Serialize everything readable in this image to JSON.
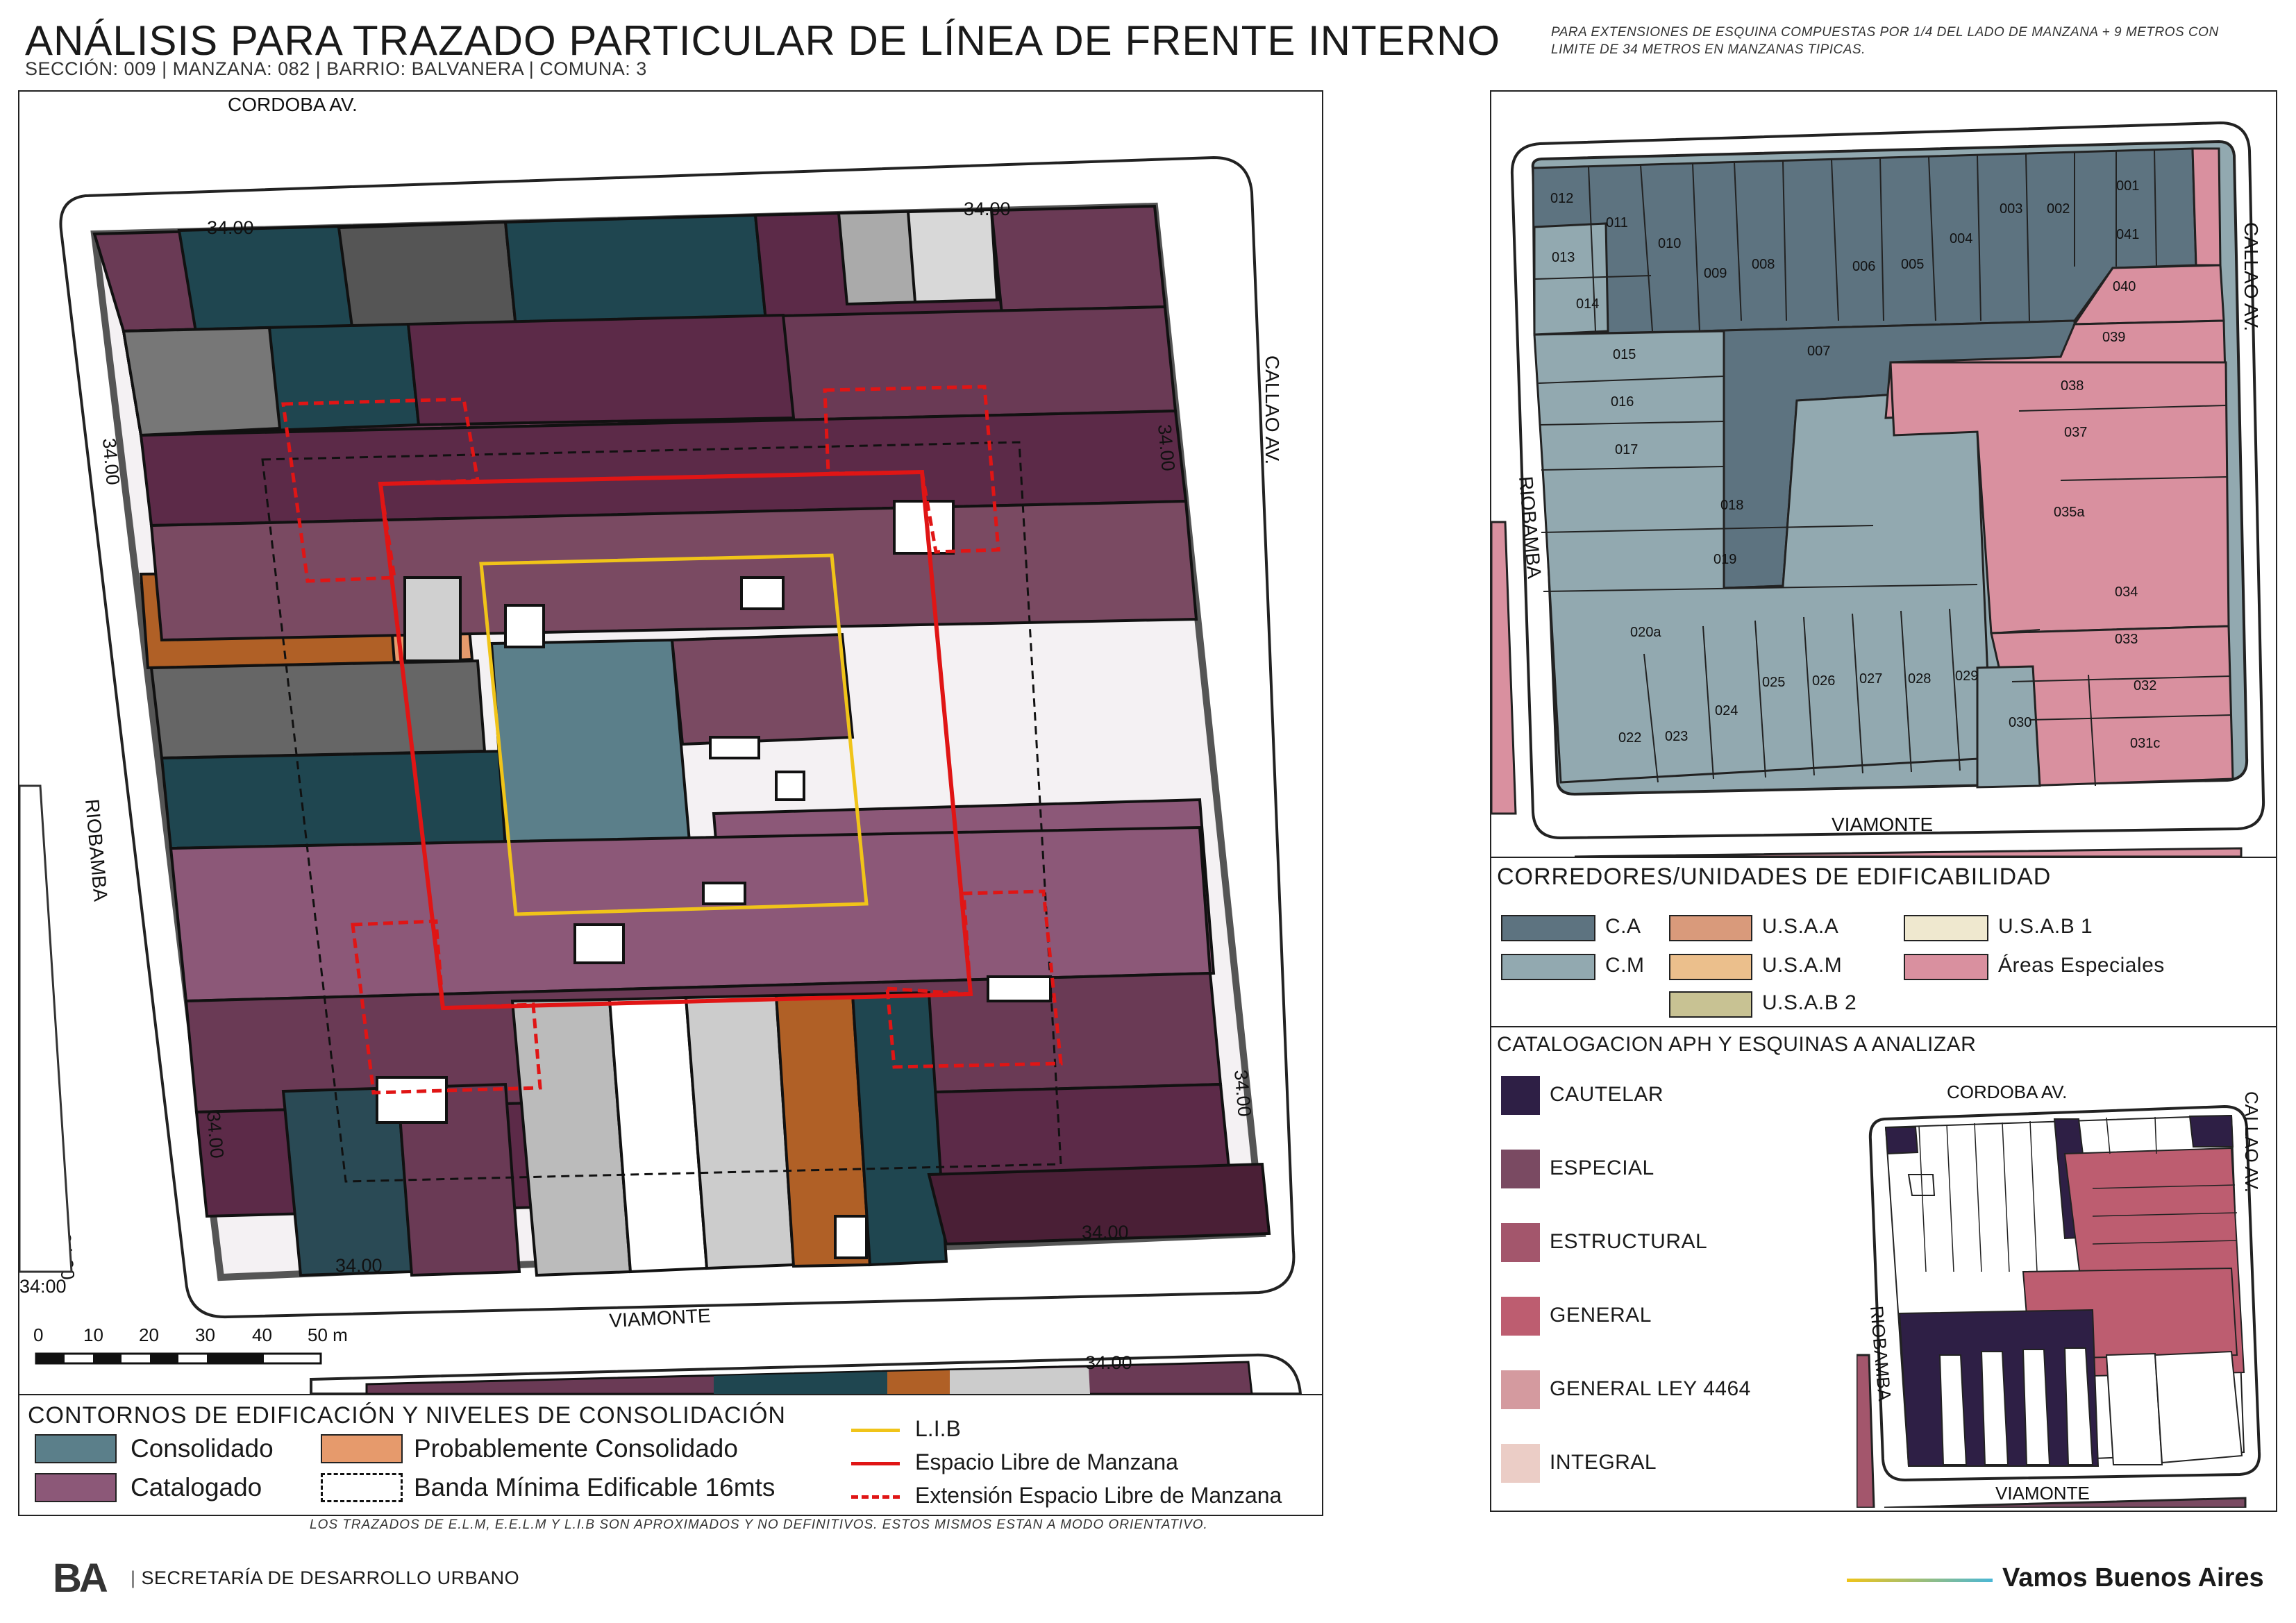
{
  "header": {
    "title": "ANÁLISIS PARA TRAZADO PARTICULAR DE LÍNEA DE FRENTE INTERNO",
    "subtitle": "SECCIÓN: 009 |  MANZANA: 082 | BARRIO: BALVANERA | COMUNA: 3",
    "note": "PARA EXTENSIONES DE ESQUINA COMPUESTAS POR 1/4 DEL LADO DE MANZANA + 9 METROS CON LIMITE DE 34 METROS EN MANZANAS TIPICAS."
  },
  "main_map": {
    "streets": {
      "north": "CORDOBA AV.",
      "east": "CALLAO AV.",
      "south": "VIAMONTE",
      "west": "RIOBAMBA"
    },
    "dimension_label": "34.00",
    "scale": {
      "ticks": [
        "0",
        "10",
        "20",
        "30",
        "40",
        "50 m"
      ]
    }
  },
  "legend_main": {
    "title": "CONTORNOS DE EDIFICACIÓN Y NIVELES DE CONSOLIDACIÓN",
    "items": [
      {
        "label": "Consolidado",
        "color": "#5b7f8a"
      },
      {
        "label": "Probablemente Consolidado",
        "color": "#e69a6c"
      },
      {
        "label": "Catalogado",
        "color": "#8c5878"
      },
      {
        "label": "Banda Mínima Edificable 16mts",
        "style": "dashed-black"
      }
    ],
    "lines": [
      {
        "label": "L.I.B",
        "color": "#f0c419",
        "style": "solid"
      },
      {
        "label": "Espacio Libre de Manzana",
        "color": "#e01515",
        "style": "solid"
      },
      {
        "label": "Extensión Espacio Libre de Manzana",
        "color": "#e01515",
        "style": "dashed"
      }
    ]
  },
  "parcel_map": {
    "streets": {
      "south": "VIAMONTE",
      "east": "CALLAO AV.",
      "west": "RIOBAMBA"
    },
    "parcels": [
      {
        "id": "012",
        "group": "CA"
      },
      {
        "id": "011",
        "group": "CA"
      },
      {
        "id": "010",
        "group": "CA"
      },
      {
        "id": "009",
        "group": "CA"
      },
      {
        "id": "008",
        "group": "CA"
      },
      {
        "id": "007",
        "group": "CA"
      },
      {
        "id": "006",
        "group": "CA"
      },
      {
        "id": "005",
        "group": "CA"
      },
      {
        "id": "004",
        "group": "CA"
      },
      {
        "id": "003",
        "group": "CA"
      },
      {
        "id": "002",
        "group": "CA"
      },
      {
        "id": "001",
        "group": "AE"
      },
      {
        "id": "013",
        "group": "CM"
      },
      {
        "id": "014",
        "group": "CM"
      },
      {
        "id": "015",
        "group": "CM"
      },
      {
        "id": "016",
        "group": "CM"
      },
      {
        "id": "017",
        "group": "CM"
      },
      {
        "id": "018",
        "group": "CM"
      },
      {
        "id": "019",
        "group": "CM"
      },
      {
        "id": "020a",
        "group": "CM"
      },
      {
        "id": "022",
        "group": "CM"
      },
      {
        "id": "023",
        "group": "CM"
      },
      {
        "id": "024",
        "group": "CM"
      },
      {
        "id": "025",
        "group": "CM"
      },
      {
        "id": "026",
        "group": "CM"
      },
      {
        "id": "027",
        "group": "CM"
      },
      {
        "id": "028",
        "group": "CM"
      },
      {
        "id": "029",
        "group": "CM"
      },
      {
        "id": "030",
        "group": "CM"
      },
      {
        "id": "041",
        "group": "AE"
      },
      {
        "id": "040",
        "group": "AE"
      },
      {
        "id": "039",
        "group": "AE"
      },
      {
        "id": "038",
        "group": "AE"
      },
      {
        "id": "037",
        "group": "AE"
      },
      {
        "id": "035a",
        "group": "AE"
      },
      {
        "id": "034",
        "group": "AE"
      },
      {
        "id": "033",
        "group": "AE"
      },
      {
        "id": "032",
        "group": "AE"
      },
      {
        "id": "031c",
        "group": "AE"
      }
    ]
  },
  "legend_corridors": {
    "title": "CORREDORES/UNIDADES DE EDIFICABILIDAD",
    "items": [
      {
        "label": "C.A",
        "color": "#5d7380"
      },
      {
        "label": "C.M",
        "color": "#92a9b0"
      },
      {
        "label": "U.S.A.A",
        "color": "#d99a7b"
      },
      {
        "label": "U.S.A.M",
        "color": "#ebbf8c"
      },
      {
        "label": "U.S.A.B 2",
        "color": "#c8c293"
      },
      {
        "label": "U.S.A.B 1",
        "color": "#efe8cf"
      },
      {
        "label": "Áreas Especiales",
        "color": "#d9909f"
      }
    ]
  },
  "legend_catalog": {
    "title": "CATALOGACION APH Y ESQUINAS A ANALIZAR",
    "items": [
      {
        "label": "CAUTELAR",
        "color": "#2e1f45"
      },
      {
        "label": "ESPECIAL",
        "color": "#7a4a62"
      },
      {
        "label": "ESTRUCTURAL",
        "color": "#a3566c"
      },
      {
        "label": "GENERAL",
        "color": "#bd5d70"
      },
      {
        "label": "GENERAL LEY 4464",
        "color": "#d49a9f"
      },
      {
        "label": "INTEGRAL",
        "color": "#ebcdc6"
      }
    ],
    "mini_streets": {
      "north": "CORDOBA AV.",
      "east": "CALLAO AV.",
      "south": "VIAMONTE",
      "west": "RIOBAMBA"
    }
  },
  "footer": {
    "disclaimer": "LOS TRAZADOS DE E.L.M, E.E.L.M Y L.I.B SON APROXIMADOS Y NO DEFINITIVOS. ESTOS MISMOS ESTAN A MODO ORIENTATIVO.",
    "logo": "BA",
    "org": "SECRETARÍA DE DESARROLLO URBANO",
    "slogan": "Vamos Buenos Aires"
  }
}
